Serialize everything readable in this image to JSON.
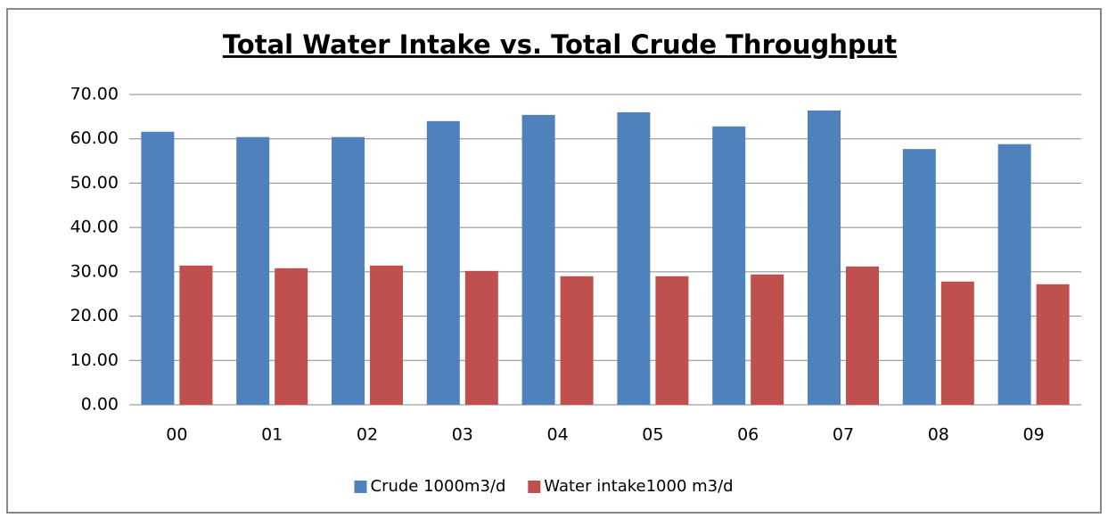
{
  "chart_data": {
    "type": "bar",
    "title": "Total Water Intake vs. Total Crude Throughput",
    "categories": [
      "00",
      "01",
      "02",
      "03",
      "04",
      "05",
      "06",
      "07",
      "08",
      "09"
    ],
    "series": [
      {
        "name": "Crude 1000m3/d",
        "color": "#4f81bd",
        "values": [
          61.6,
          60.4,
          60.4,
          64.0,
          65.4,
          66.0,
          62.8,
          66.4,
          57.7,
          58.8
        ]
      },
      {
        "name": "Water intake1000 m3/d",
        "color": "#c0504d",
        "values": [
          31.4,
          30.8,
          31.4,
          30.2,
          29.0,
          29.0,
          29.4,
          31.2,
          27.8,
          27.2
        ]
      }
    ],
    "ylim": [
      0,
      70
    ],
    "yticks": [
      {
        "value": 0,
        "label": "0.00"
      },
      {
        "value": 10,
        "label": "10.00"
      },
      {
        "value": 20,
        "label": "20.00"
      },
      {
        "value": 30,
        "label": "30.00"
      },
      {
        "value": 40,
        "label": "40.00"
      },
      {
        "value": 50,
        "label": "50.00"
      },
      {
        "value": 60,
        "label": "60.00"
      },
      {
        "value": 70,
        "label": "70.00"
      }
    ],
    "grid": true,
    "legend": "bottom"
  }
}
